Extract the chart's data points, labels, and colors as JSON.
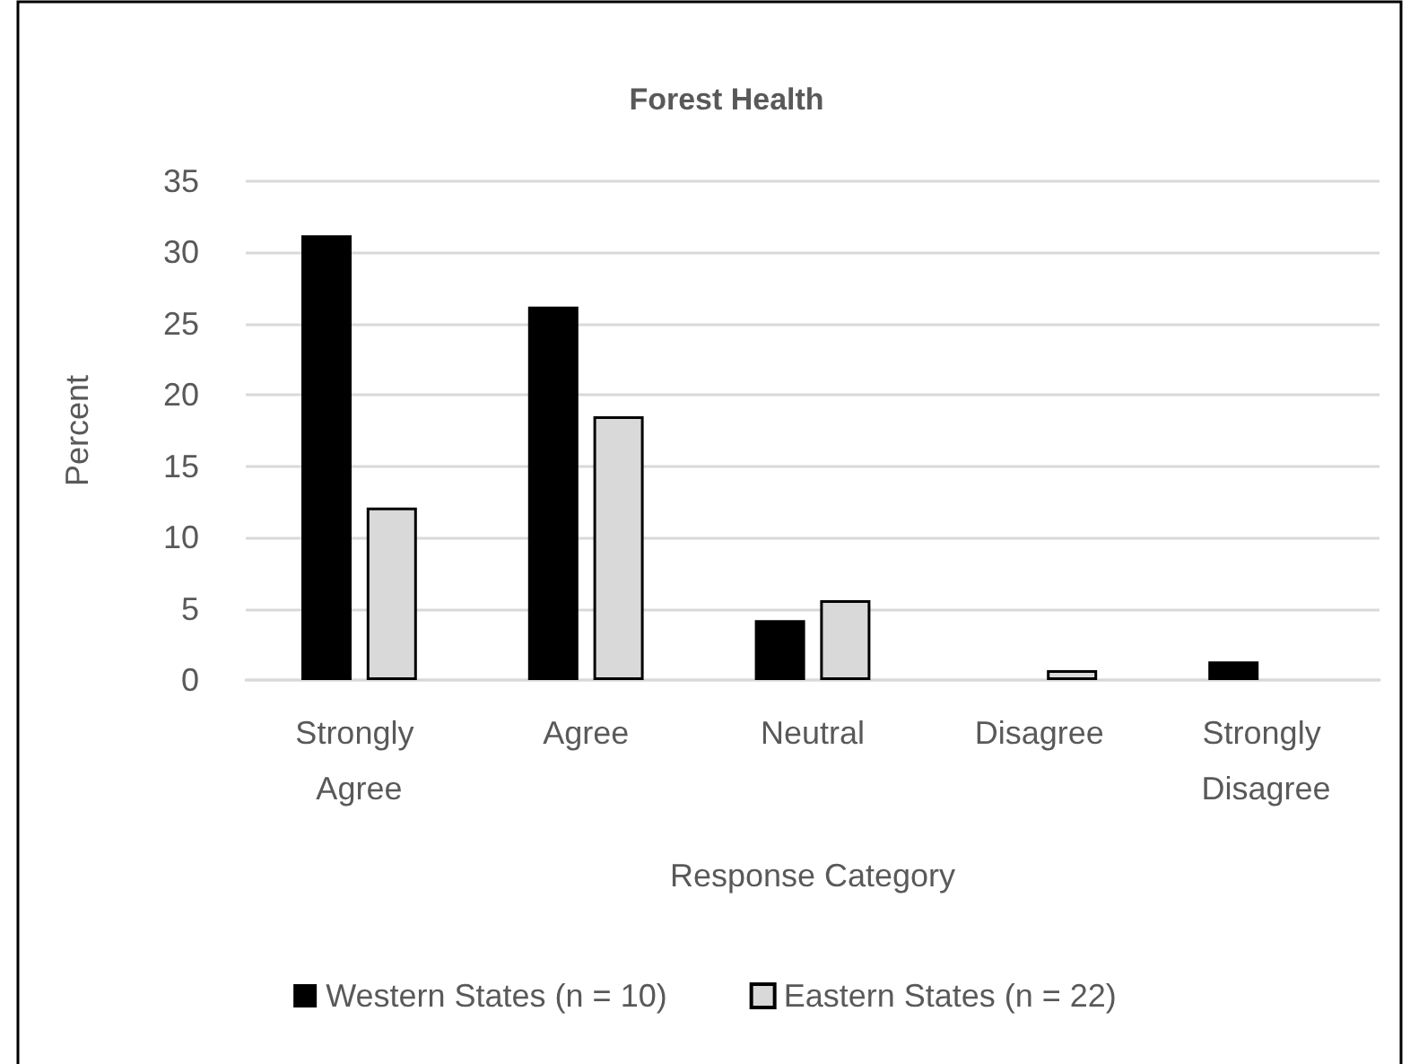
{
  "chart_data": {
    "type": "bar",
    "title": "Forest Health",
    "xlabel": "Response Category",
    "ylabel": "Percent",
    "categories": [
      "Strongly Agree",
      "Agree",
      "Neutral",
      "Disagree",
      "Strongly Disagree"
    ],
    "series": [
      {
        "name": "Western States (n = 10)",
        "color": "#000000",
        "values": [
          31.2,
          26.2,
          4.2,
          0,
          1.3
        ]
      },
      {
        "name": "Eastern States (n = 22)",
        "color": "#d9d9d9",
        "values": [
          12.1,
          18.5,
          5.6,
          0.7,
          0
        ]
      }
    ],
    "ylim": [
      0,
      35
    ],
    "yticks": [
      0,
      5,
      10,
      15,
      20,
      25,
      30,
      35
    ],
    "grid": "y",
    "legend": "bottom"
  }
}
